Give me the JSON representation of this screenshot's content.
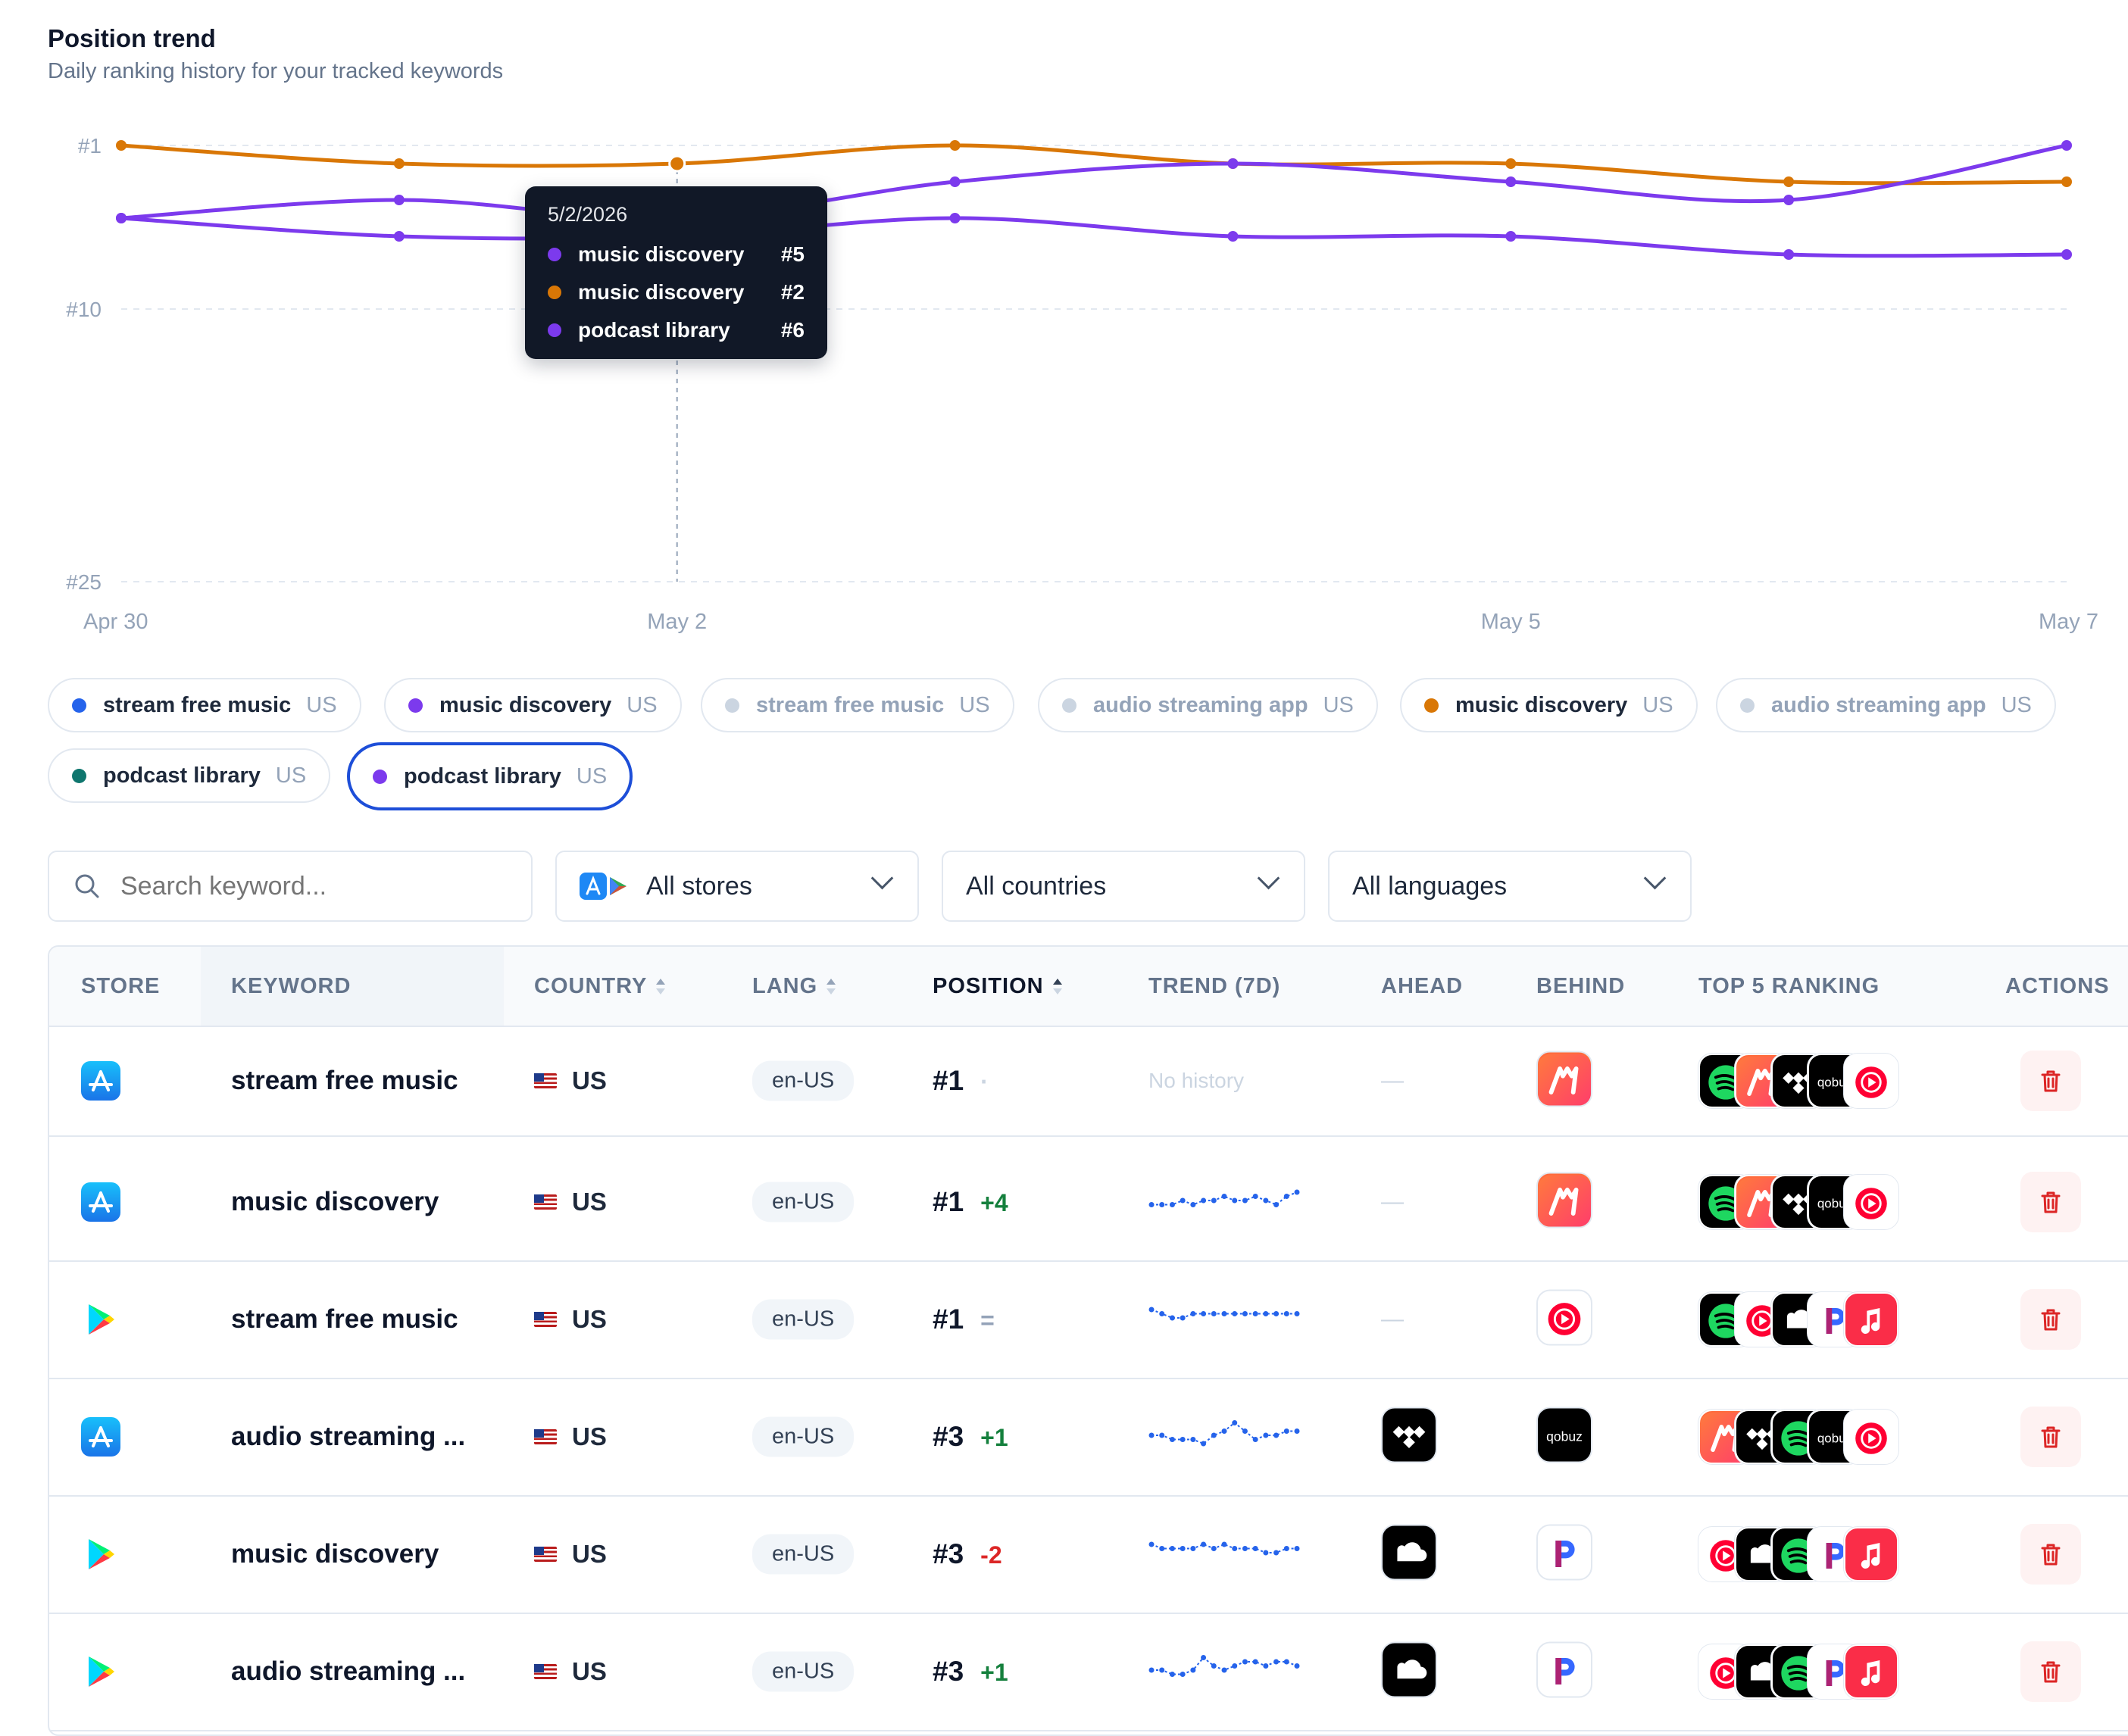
{
  "header": {
    "title": "Position trend",
    "subtitle": "Daily ranking history for your tracked keywords"
  },
  "chart_data": {
    "type": "line",
    "y_axis": {
      "ticks": [
        "#1",
        "#10",
        "#25"
      ],
      "inverted": true,
      "range": [
        1,
        25
      ]
    },
    "x_axis": {
      "ticks": [
        "Apr 30",
        "May 2",
        "May 5",
        "May 7"
      ]
    },
    "x": [
      "Apr 30",
      "May 1",
      "May 2",
      "May 3",
      "May 4",
      "May 5",
      "May 6",
      "May 7"
    ],
    "grid": true,
    "series": [
      {
        "name": "music discovery",
        "color": "#d97706",
        "values": [
          1,
          2,
          2,
          1,
          2,
          2,
          3,
          3
        ]
      },
      {
        "name": "music discovery",
        "color": "#7c3aed",
        "values": [
          5,
          4,
          5,
          3,
          2,
          3,
          4,
          1
        ]
      },
      {
        "name": "podcast library",
        "color": "#7c3aed",
        "values": [
          5,
          6,
          6,
          5,
          6,
          6,
          7,
          7
        ]
      }
    ],
    "hover_index": 2,
    "tooltip": {
      "date": "5/2/2026",
      "rows": [
        {
          "name": "music discovery",
          "color": "#7c3aed",
          "value": "#5"
        },
        {
          "name": "music discovery",
          "color": "#d97706",
          "value": "#2"
        },
        {
          "name": "podcast library",
          "color": "#7c3aed",
          "value": "#6"
        }
      ]
    }
  },
  "legend": [
    {
      "label": "stream free music",
      "country": "US",
      "color": "#2563eb",
      "active": true,
      "selected": false
    },
    {
      "label": "music discovery",
      "country": "US",
      "color": "#7c3aed",
      "active": true,
      "selected": false
    },
    {
      "label": "stream free music",
      "country": "US",
      "color": "#cbd5e1",
      "active": false,
      "selected": false
    },
    {
      "label": "audio streaming app",
      "country": "US",
      "color": "#cbd5e1",
      "active": false,
      "selected": false
    },
    {
      "label": "music discovery",
      "country": "US",
      "color": "#d97706",
      "active": true,
      "selected": false
    },
    {
      "label": "audio streaming app",
      "country": "US",
      "color": "#cbd5e1",
      "active": false,
      "selected": false
    },
    {
      "label": "podcast library",
      "country": "US",
      "color": "#0f766e",
      "active": true,
      "selected": false
    },
    {
      "label": "podcast library",
      "country": "US",
      "color": "#7c3aed",
      "active": true,
      "selected": true
    }
  ],
  "filters": {
    "search_placeholder": "Search keyword...",
    "store": "All stores",
    "country": "All countries",
    "language": "All languages"
  },
  "table": {
    "columns": [
      "STORE",
      "KEYWORD",
      "COUNTRY",
      "LANG",
      "POSITION",
      "TREND (7D)",
      "AHEAD",
      "BEHIND",
      "TOP 5 RANKING",
      "ACTIONS"
    ],
    "rows": [
      {
        "store": "app-store",
        "keyword": "stream free music",
        "country": "US",
        "lang": "en-US",
        "position": "#1",
        "delta": "·",
        "delta_color": "#cbd5e1",
        "trend": null,
        "trend_label": "No history",
        "ahead": "—",
        "behind": "musixmatch",
        "top5": [
          "spotify",
          "musixmatch",
          "tidal",
          "qobuz",
          "youtube-music"
        ]
      },
      {
        "store": "app-store",
        "keyword": "music discovery",
        "country": "US",
        "lang": "en-US",
        "position": "#1",
        "delta": "+4",
        "delta_color": "#15803d",
        "trend": [
          5,
          5,
          5,
          4,
          5,
          4,
          4,
          3,
          4,
          4,
          3,
          4,
          5,
          3,
          2
        ],
        "trend_label": "",
        "ahead": "—",
        "behind": "musixmatch",
        "top5": [
          "spotify",
          "musixmatch",
          "tidal",
          "qobuz",
          "youtube-music"
        ]
      },
      {
        "store": "google-play",
        "keyword": "stream free music",
        "country": "US",
        "lang": "en-US",
        "position": "#1",
        "delta": "=",
        "delta_color": "#94a3b8",
        "trend": [
          2,
          3,
          4,
          4,
          3,
          3,
          3,
          3,
          3,
          3,
          3,
          3,
          3,
          3,
          3
        ],
        "trend_label": "",
        "ahead": "—",
        "behind": "youtube-music",
        "top5": [
          "spotify",
          "youtube-music",
          "soundcloud",
          "pandora",
          "apple-music"
        ]
      },
      {
        "store": "app-store",
        "keyword": "audio streaming ...",
        "country": "US",
        "lang": "en-US",
        "position": "#3",
        "delta": "+1",
        "delta_color": "#15803d",
        "trend": [
          4,
          4,
          5,
          5,
          5,
          6,
          4,
          3,
          1,
          3,
          5,
          4,
          4,
          3,
          3
        ],
        "trend_label": "",
        "ahead": "tidal",
        "behind": "qobuz",
        "top5": [
          "musixmatch",
          "tidal",
          "spotify",
          "qobuz",
          "youtube-music"
        ]
      },
      {
        "store": "google-play",
        "keyword": "music discovery",
        "country": "US",
        "lang": "en-US",
        "position": "#3",
        "delta": "-2",
        "delta_color": "#dc2626",
        "trend": [
          2,
          3,
          3,
          3,
          3,
          2,
          3,
          2,
          3,
          3,
          3,
          4,
          4,
          3,
          3
        ],
        "trend_label": "",
        "ahead": "soundcloud",
        "behind": "pandora",
        "top5": [
          "youtube-music",
          "soundcloud",
          "spotify",
          "pandora",
          "apple-music"
        ]
      },
      {
        "store": "google-play",
        "keyword": "audio streaming ...",
        "country": "US",
        "lang": "en-US",
        "position": "#3",
        "delta": "+1",
        "delta_color": "#15803d",
        "trend": [
          4,
          4,
          5,
          5,
          4,
          1,
          3,
          4,
          3,
          2,
          2,
          3,
          2,
          2,
          3
        ],
        "trend_label": "",
        "ahead": "soundcloud",
        "behind": "pandora",
        "top5": [
          "youtube-music",
          "soundcloud",
          "spotify",
          "pandora",
          "apple-music"
        ]
      }
    ]
  }
}
